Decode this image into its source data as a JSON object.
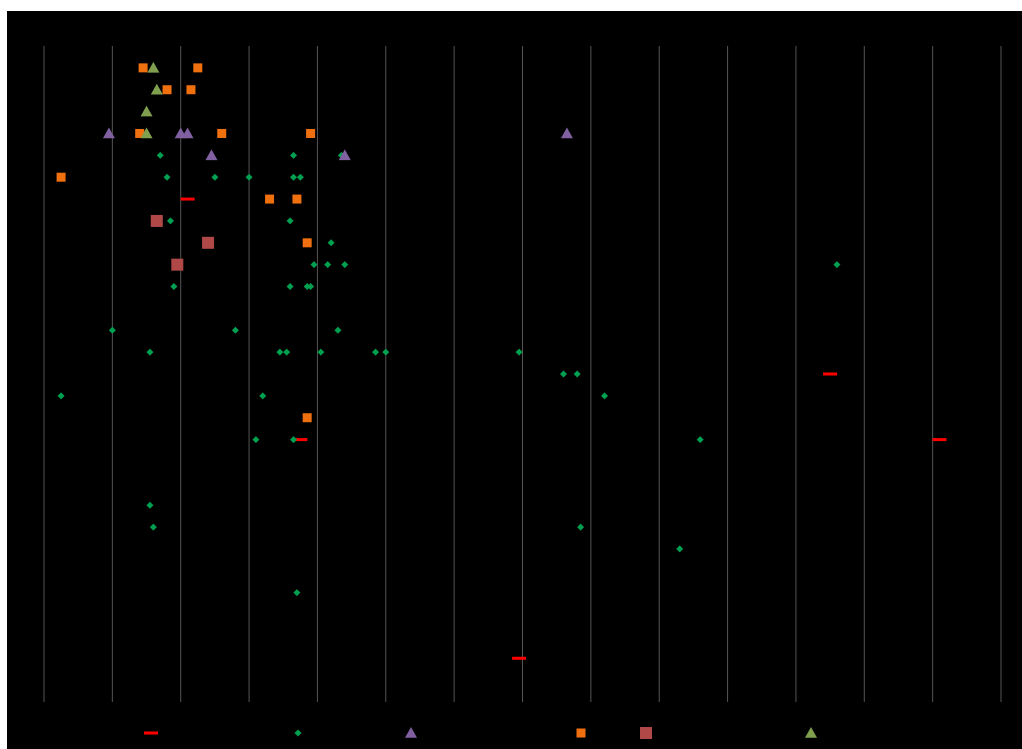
{
  "chart_data": {
    "type": "scatter",
    "title": "",
    "xlabel": "",
    "ylabel": "",
    "xlim": [
      0,
      14
    ],
    "ylim": [
      0,
      30
    ],
    "grid": {
      "vertical": true,
      "horizontal": false,
      "color": "#555555"
    },
    "legend_position": "bottom",
    "background": "#000000",
    "series": [
      {
        "marker": "dash",
        "color": "#ff0000",
        "points": [
          [
            2.1,
            23
          ],
          [
            3.75,
            12
          ],
          [
            11.5,
            15
          ],
          [
            13.1,
            12
          ],
          [
            6.95,
            2
          ]
        ]
      },
      {
        "marker": "diamond",
        "color": "#00a050",
        "points": [
          [
            1.7,
            25
          ],
          [
            1.8,
            24
          ],
          [
            2.5,
            24
          ],
          [
            3.0,
            24
          ],
          [
            3.65,
            24
          ],
          [
            3.75,
            24
          ],
          [
            1.85,
            22
          ],
          [
            3.6,
            22
          ],
          [
            3.7,
            23
          ],
          [
            4.2,
            21
          ],
          [
            3.95,
            20
          ],
          [
            4.15,
            20
          ],
          [
            4.4,
            20
          ],
          [
            11.6,
            20
          ],
          [
            1.9,
            19
          ],
          [
            3.6,
            19
          ],
          [
            3.85,
            19
          ],
          [
            3.9,
            19
          ],
          [
            1.0,
            17
          ],
          [
            2.8,
            17
          ],
          [
            4.3,
            17
          ],
          [
            1.55,
            16
          ],
          [
            3.45,
            16
          ],
          [
            3.55,
            16
          ],
          [
            4.05,
            16
          ],
          [
            4.85,
            16
          ],
          [
            5.0,
            16
          ],
          [
            6.95,
            16
          ],
          [
            7.6,
            15
          ],
          [
            7.8,
            15
          ],
          [
            0.25,
            14
          ],
          [
            3.2,
            14
          ],
          [
            8.2,
            14
          ],
          [
            3.1,
            12
          ],
          [
            3.65,
            12
          ],
          [
            9.6,
            12
          ],
          [
            1.55,
            9
          ],
          [
            1.6,
            8
          ],
          [
            7.85,
            8
          ],
          [
            9.3,
            7
          ],
          [
            3.7,
            5
          ],
          [
            4.35,
            25
          ],
          [
            3.65,
            25
          ]
        ]
      },
      {
        "marker": "triangle",
        "color": "#8060a0",
        "points": [
          [
            0.95,
            26
          ],
          [
            2.0,
            26
          ],
          [
            2.1,
            26
          ],
          [
            2.45,
            25
          ],
          [
            4.4,
            25
          ],
          [
            7.65,
            26
          ]
        ]
      },
      {
        "marker": "square",
        "color": "#f07010",
        "points": [
          [
            1.45,
            29
          ],
          [
            2.25,
            29
          ],
          [
            1.8,
            28
          ],
          [
            2.15,
            28
          ],
          [
            1.4,
            26
          ],
          [
            2.6,
            26
          ],
          [
            3.9,
            26
          ],
          [
            0.25,
            24
          ],
          [
            3.3,
            23
          ],
          [
            3.7,
            23
          ],
          [
            3.85,
            21
          ],
          [
            3.85,
            13
          ]
        ]
      },
      {
        "marker": "square-large",
        "color": "#b04848",
        "points": [
          [
            1.65,
            22
          ],
          [
            2.4,
            21
          ],
          [
            1.95,
            20
          ]
        ]
      },
      {
        "marker": "triangle",
        "color": "#80a050",
        "points": [
          [
            1.6,
            29
          ],
          [
            1.65,
            28
          ],
          [
            1.5,
            27
          ],
          [
            1.5,
            26
          ]
        ]
      }
    ]
  }
}
